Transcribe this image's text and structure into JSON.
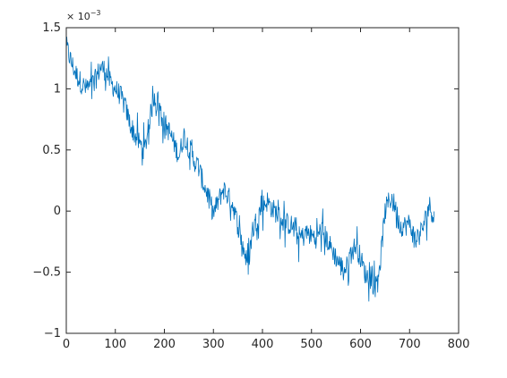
{
  "chart_data": {
    "type": "line",
    "title": "",
    "xlabel": "",
    "ylabel": "",
    "y_exponent_label": "× 10",
    "y_exponent_power": "−3",
    "xlim": [
      0,
      800
    ],
    "ylim": [
      -1,
      1.5
    ],
    "x_ticks": [
      0,
      100,
      200,
      300,
      400,
      500,
      600,
      700,
      800
    ],
    "x_tick_labels": [
      "0",
      "100",
      "200",
      "300",
      "400",
      "500",
      "600",
      "700",
      "800"
    ],
    "y_ticks": [
      -1,
      -0.5,
      0,
      0.5,
      1,
      1.5
    ],
    "y_tick_labels": [
      "−1",
      "−0.5",
      "0",
      "0.5",
      "1",
      "1.5"
    ],
    "y_scale_note": "values in units of 1e-3",
    "grid": false,
    "line_color": "#0072BD",
    "series": [
      {
        "x": [
          0,
          10,
          20,
          30,
          40,
          50,
          60,
          70,
          80,
          90,
          100,
          110,
          120,
          130,
          140,
          150,
          160,
          170,
          180,
          190,
          200,
          210,
          220,
          230,
          240,
          250,
          260,
          270,
          280,
          290,
          300,
          310,
          320,
          330,
          340,
          350,
          360,
          370,
          380,
          390,
          400,
          410,
          420,
          430,
          440,
          450,
          460,
          470,
          480,
          490,
          500,
          510,
          520,
          530,
          540,
          550,
          560,
          570,
          580,
          590,
          600,
          610,
          620,
          630,
          640,
          650,
          660,
          670,
          680,
          690,
          700,
          710,
          720,
          730,
          740,
          750
        ],
        "y": [
          1.35,
          1.22,
          1.12,
          1.05,
          1.0,
          1.02,
          1.08,
          1.18,
          1.15,
          1.05,
          1.0,
          0.95,
          0.85,
          0.72,
          0.62,
          0.55,
          0.5,
          0.75,
          0.95,
          0.85,
          0.72,
          0.65,
          0.55,
          0.45,
          0.62,
          0.52,
          0.42,
          0.35,
          0.22,
          0.12,
          -0.02,
          0.08,
          0.18,
          0.12,
          0.05,
          -0.12,
          -0.28,
          -0.45,
          -0.15,
          -0.05,
          0.05,
          0.08,
          0.02,
          -0.02,
          -0.08,
          -0.1,
          -0.12,
          -0.2,
          -0.22,
          -0.18,
          -0.2,
          -0.22,
          -0.15,
          -0.22,
          -0.3,
          -0.38,
          -0.45,
          -0.48,
          -0.35,
          -0.28,
          -0.38,
          -0.52,
          -0.55,
          -0.62,
          -0.42,
          0.0,
          0.1,
          0.05,
          -0.12,
          -0.12,
          -0.1,
          -0.22,
          -0.2,
          -0.1,
          0.05,
          -0.05
        ]
      }
    ]
  }
}
